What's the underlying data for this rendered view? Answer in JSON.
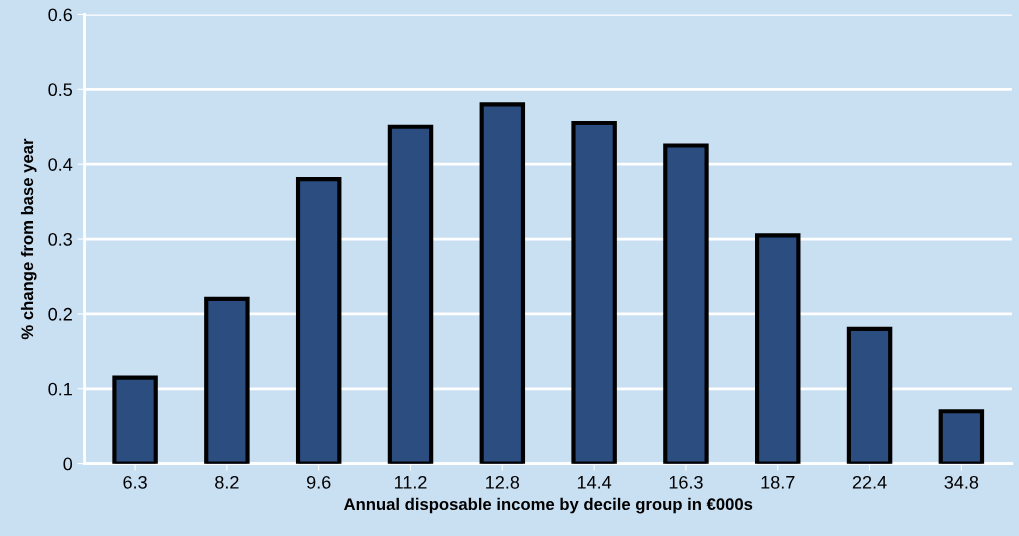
{
  "chart_data": {
    "type": "bar",
    "xlabel": "Annual disposable income by decile group in €000s",
    "ylabel": "% change from base year",
    "categories": [
      "6.3",
      "8.2",
      "9.6",
      "11.2",
      "12.8",
      "14.4",
      "16.3",
      "18.7",
      "22.4",
      "34.8"
    ],
    "values": [
      0.115,
      0.22,
      0.38,
      0.45,
      0.48,
      0.455,
      0.425,
      0.305,
      0.18,
      0.07
    ],
    "color": "#2b4d80",
    "ylim": [
      0,
      0.6
    ],
    "yticks": [
      0,
      0.1,
      0.2,
      0.3,
      0.4,
      0.5,
      0.6
    ],
    "grid": "y",
    "legend": false
  }
}
